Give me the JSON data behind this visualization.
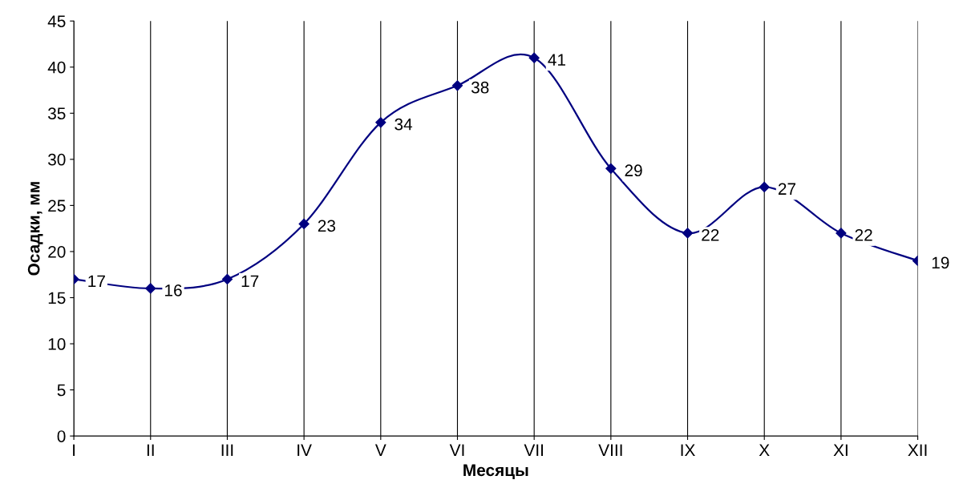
{
  "chart_data": {
    "type": "line",
    "xlabel": "Месяцы",
    "ylabel": "Осадки, мм",
    "categories": [
      "I",
      "II",
      "III",
      "IV",
      "V",
      "VI",
      "VII",
      "VIII",
      "IX",
      "X",
      "XI",
      "XII"
    ],
    "series": [
      {
        "color": "#000080",
        "values": [
          17,
          16,
          17,
          23,
          34,
          38,
          41,
          29,
          22,
          27,
          22,
          19
        ]
      }
    ],
    "ylim": [
      0,
      45
    ],
    "yticks": [
      0,
      5,
      10,
      15,
      20,
      25,
      30,
      35,
      40,
      45
    ],
    "grid": "x",
    "marker": "diamond",
    "line_style": "solid",
    "data_labels": true,
    "legend": false
  }
}
